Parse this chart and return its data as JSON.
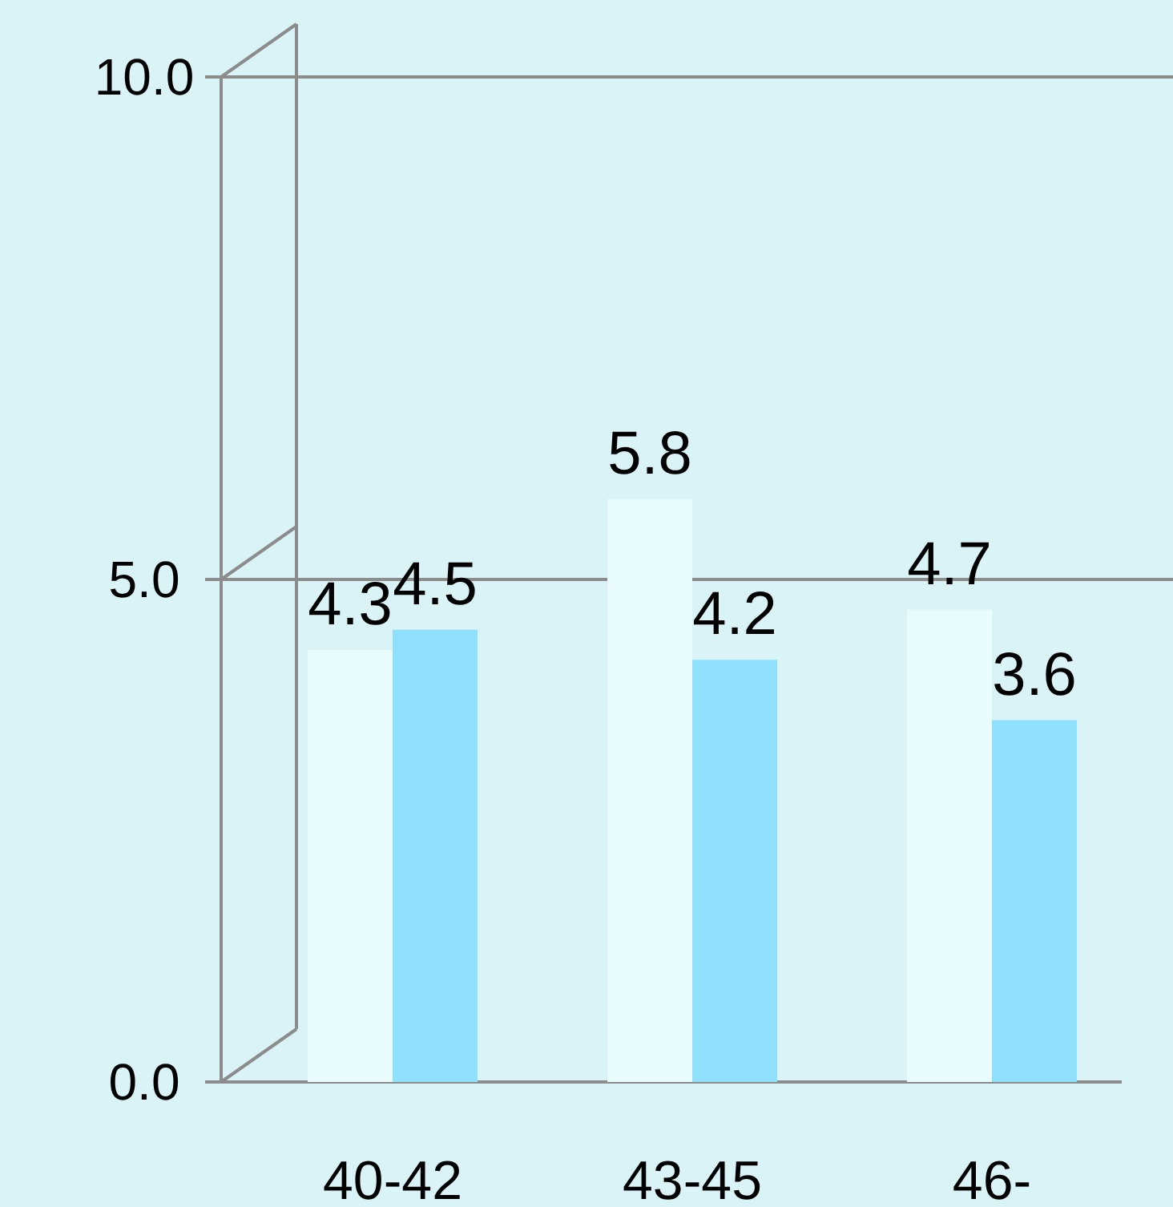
{
  "chart_data": {
    "type": "bar",
    "categories": [
      "40-42",
      "43-45",
      "46-"
    ],
    "series": [
      {
        "color": "#e8fbfd",
        "values": [
          4.3,
          5.8,
          4.7
        ]
      },
      {
        "color": "#8ee0fb",
        "values": [
          4.5,
          4.2,
          3.6
        ]
      }
    ],
    "ylim": [
      0,
      10
    ],
    "yticks": [
      {
        "value": 0,
        "label": "0.0"
      },
      {
        "value": 5,
        "label": "5.0"
      },
      {
        "value": 10,
        "label": "10.0"
      }
    ],
    "grid": "y",
    "data_labels": true
  }
}
